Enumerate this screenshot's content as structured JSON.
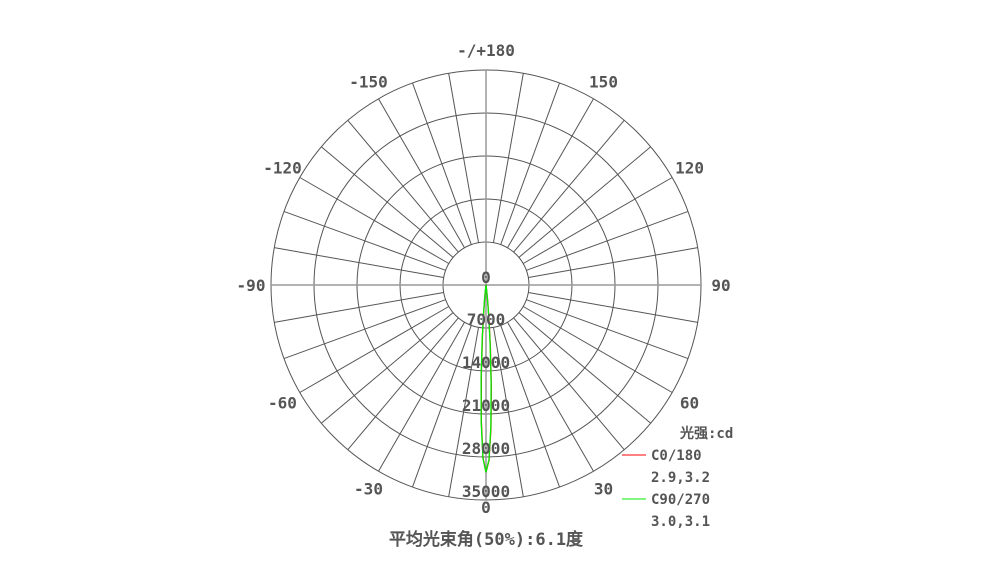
{
  "chart_data": {
    "type": "polar",
    "title": "平均光束角(50%):6.1度",
    "unit_label": "光强:cd",
    "angle_labels": [
      "0",
      "30",
      "60",
      "90",
      "120",
      "150",
      "-/+180",
      "-150",
      "-120",
      "-90",
      "-60",
      "-30"
    ],
    "angle_values": [
      0,
      30,
      60,
      90,
      120,
      150,
      180,
      -150,
      -120,
      -90,
      -60,
      -30
    ],
    "radial_labels": [
      "0",
      "7000",
      "14000",
      "21000",
      "28000",
      "35000"
    ],
    "radial_range": [
      0,
      35000
    ],
    "spoke_step_deg": 10,
    "grid": true,
    "legend_position": "bottom-right",
    "series": [
      {
        "name": "C0/180",
        "beam_angles": "2.9,3.2",
        "color": "#ff0000",
        "angles": [
          -8,
          -6,
          -5,
          -4,
          -3,
          -2,
          -1,
          0,
          1,
          2,
          3,
          4,
          5,
          6,
          8
        ],
        "values": [
          160,
          1570,
          3880,
          8150,
          14520,
          21930,
          28090,
          30500,
          28510,
          23270,
          16590,
          10330,
          5620,
          2660,
          400
        ]
      },
      {
        "name": "C90/270",
        "beam_angles": "3.0,3.1",
        "color": "#00ee00",
        "angles": [
          -8,
          -6,
          -5,
          -4,
          -3,
          -2,
          -1,
          0,
          1,
          2,
          3,
          4,
          5,
          6,
          8
        ],
        "values": [
          220,
          1910,
          4450,
          8900,
          15250,
          22410,
          28240,
          30500,
          28370,
          22850,
          15940,
          9620,
          5020,
          2270,
          300
        ]
      }
    ]
  }
}
